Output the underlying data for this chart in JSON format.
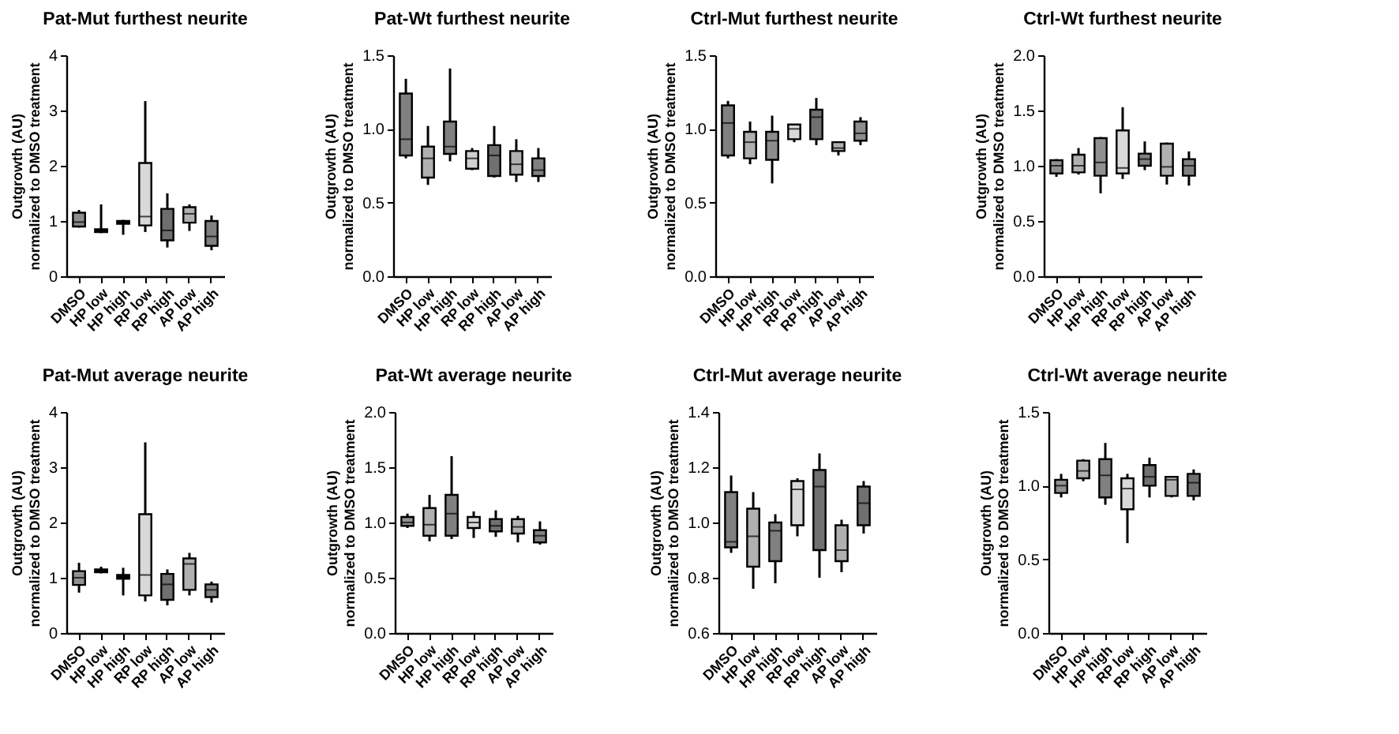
{
  "chart_data": [
    {
      "type": "box",
      "title": "Pat-Mut furthest neurite",
      "ylabel": "Outgrowth (AU)\nnormalized to DMSO treatment",
      "categories": [
        "DMSO",
        "HP low",
        "HP high",
        "RP low",
        "RP high",
        "AP low",
        "AP high"
      ],
      "colors": [
        "#8c8c8c",
        "#000000",
        "#000000",
        "#d9d9d9",
        "#6e6e6e",
        "#b0b0b0",
        "#808080"
      ],
      "ylim": [
        0,
        4
      ],
      "yticks": [
        0,
        1,
        2,
        3,
        4
      ],
      "grid": false,
      "boxes": [
        {
          "low": 0.88,
          "q1": 0.9,
          "median": 0.98,
          "q3": 1.15,
          "high": 1.2
        },
        {
          "low": 0.78,
          "q1": 0.8,
          "median": 0.82,
          "q3": 0.85,
          "high": 1.3
        },
        {
          "low": 0.75,
          "q1": 0.95,
          "median": 0.97,
          "q3": 1.0,
          "high": 1.02
        },
        {
          "low": 0.8,
          "q1": 0.92,
          "median": 1.08,
          "q3": 2.05,
          "high": 3.17
        },
        {
          "low": 0.52,
          "q1": 0.65,
          "median": 0.83,
          "q3": 1.22,
          "high": 1.5
        },
        {
          "low": 0.82,
          "q1": 0.97,
          "median": 1.13,
          "q3": 1.25,
          "high": 1.3
        },
        {
          "low": 0.47,
          "q1": 0.55,
          "median": 0.72,
          "q3": 1.0,
          "high": 1.1
        }
      ]
    },
    {
      "type": "box",
      "title": "Pat-Wt furthest neurite",
      "ylabel": "Outgrowth (AU)\nnormalized to DMSO treatment",
      "categories": [
        "DMSO",
        "HP low",
        "HP high",
        "RP low",
        "RP high",
        "AP low",
        "AP high"
      ],
      "colors": [
        "#808080",
        "#b0b0b0",
        "#808080",
        "#d0d0d0",
        "#707070",
        "#b0b0b0",
        "#808080"
      ],
      "ylim": [
        0,
        1.5
      ],
      "yticks": [
        {
          "value": 0,
          "label": "0.0"
        },
        0.5,
        {
          "value": 1,
          "label": "1.0"
        },
        1.5
      ],
      "grid": false,
      "boxes": [
        {
          "low": 0.8,
          "q1": 0.82,
          "median": 0.93,
          "q3": 1.24,
          "high": 1.34
        },
        {
          "low": 0.62,
          "q1": 0.67,
          "median": 0.8,
          "q3": 0.88,
          "high": 1.02
        },
        {
          "low": 0.78,
          "q1": 0.83,
          "median": 0.88,
          "q3": 1.05,
          "high": 1.41
        },
        {
          "low": 0.72,
          "q1": 0.73,
          "median": 0.8,
          "q3": 0.85,
          "high": 0.87
        },
        {
          "low": 0.67,
          "q1": 0.68,
          "median": 0.82,
          "q3": 0.89,
          "high": 1.02
        },
        {
          "low": 0.64,
          "q1": 0.69,
          "median": 0.76,
          "q3": 0.85,
          "high": 0.93
        },
        {
          "low": 0.64,
          "q1": 0.68,
          "median": 0.72,
          "q3": 0.8,
          "high": 0.87
        }
      ]
    },
    {
      "type": "box",
      "title": "Ctrl-Mut furthest neurite",
      "ylabel": "Outgrowth (AU)\nnormalized to DMSO treatment",
      "categories": [
        "DMSO",
        "HP low",
        "HP high",
        "RP low",
        "RP high",
        "AP low",
        "AP high"
      ],
      "colors": [
        "#808080",
        "#b0b0b0",
        "#8c8c8c",
        "#d9d9d9",
        "#707070",
        "#b0b0b0",
        "#8c8c8c"
      ],
      "ylim": [
        0,
        1.5
      ],
      "yticks": [
        {
          "value": 0,
          "label": "0.0"
        },
        0.5,
        {
          "value": 1,
          "label": "1.0"
        },
        1.5
      ],
      "grid": false,
      "boxes": [
        {
          "low": 0.8,
          "q1": 0.82,
          "median": 1.04,
          "q3": 1.16,
          "high": 1.19
        },
        {
          "low": 0.76,
          "q1": 0.8,
          "median": 0.91,
          "q3": 0.98,
          "high": 1.05
        },
        {
          "low": 0.63,
          "q1": 0.79,
          "median": 0.92,
          "q3": 0.98,
          "high": 1.09
        },
        {
          "low": 0.91,
          "q1": 0.93,
          "median": 1.0,
          "q3": 1.03,
          "high": 1.03
        },
        {
          "low": 0.89,
          "q1": 0.93,
          "median": 1.08,
          "q3": 1.13,
          "high": 1.21
        },
        {
          "low": 0.82,
          "q1": 0.85,
          "median": 0.87,
          "q3": 0.91,
          "high": 0.91
        },
        {
          "low": 0.89,
          "q1": 0.92,
          "median": 0.97,
          "q3": 1.05,
          "high": 1.08
        }
      ]
    },
    {
      "type": "box",
      "title": "Ctrl-Wt furthest neurite",
      "ylabel": "Outgrowth (AU)\nnormalized to DMSO treatment",
      "categories": [
        "DMSO",
        "HP low",
        "HP high",
        "RP low",
        "RP high",
        "AP low",
        "AP high"
      ],
      "colors": [
        "#909090",
        "#b0b0b0",
        "#909090",
        "#d9d9d9",
        "#808080",
        "#b0b0b0",
        "#808080"
      ],
      "ylim": [
        0,
        2
      ],
      "yticks": [
        {
          "value": 0,
          "label": "0.0"
        },
        0.5,
        {
          "value": 1,
          "label": "1.0"
        },
        1.5,
        {
          "value": 2,
          "label": "2.0"
        }
      ],
      "grid": false,
      "boxes": [
        {
          "low": 0.9,
          "q1": 0.93,
          "median": 1.0,
          "q3": 1.05,
          "high": 1.06
        },
        {
          "low": 0.92,
          "q1": 0.94,
          "median": 1.0,
          "q3": 1.1,
          "high": 1.16
        },
        {
          "low": 0.75,
          "q1": 0.91,
          "median": 1.03,
          "q3": 1.25,
          "high": 1.26
        },
        {
          "low": 0.88,
          "q1": 0.93,
          "median": 0.98,
          "q3": 1.32,
          "high": 1.53
        },
        {
          "low": 0.96,
          "q1": 1.0,
          "median": 1.06,
          "q3": 1.11,
          "high": 1.22
        },
        {
          "low": 0.83,
          "q1": 0.91,
          "median": 0.99,
          "q3": 1.2,
          "high": 1.21
        },
        {
          "low": 0.82,
          "q1": 0.91,
          "median": 1.0,
          "q3": 1.06,
          "high": 1.13
        }
      ]
    },
    {
      "type": "box",
      "title": "Pat-Mut average neurite",
      "ylabel": "Outgrowth (AU)\nnormalized to DMSO treatment",
      "categories": [
        "DMSO",
        "HP low",
        "HP high",
        "RP low",
        "RP high",
        "AP low",
        "AP high"
      ],
      "colors": [
        "#909090",
        "#000000",
        "#000000",
        "#d9d9d9",
        "#707070",
        "#b0b0b0",
        "#808080"
      ],
      "ylim": [
        0,
        4
      ],
      "yticks": [
        0,
        1,
        2,
        3,
        4
      ],
      "grid": false,
      "boxes": [
        {
          "low": 0.73,
          "q1": 0.87,
          "median": 1.0,
          "q3": 1.12,
          "high": 1.27
        },
        {
          "low": 1.08,
          "q1": 1.1,
          "median": 1.12,
          "q3": 1.15,
          "high": 1.2
        },
        {
          "low": 0.68,
          "q1": 0.98,
          "median": 1.0,
          "q3": 1.05,
          "high": 1.18
        },
        {
          "low": 0.57,
          "q1": 0.68,
          "median": 1.05,
          "q3": 2.15,
          "high": 3.45
        },
        {
          "low": 0.5,
          "q1": 0.6,
          "median": 0.88,
          "q3": 1.07,
          "high": 1.15
        },
        {
          "low": 0.68,
          "q1": 0.78,
          "median": 1.25,
          "q3": 1.35,
          "high": 1.45
        },
        {
          "low": 0.55,
          "q1": 0.65,
          "median": 0.78,
          "q3": 0.88,
          "high": 0.93
        }
      ]
    },
    {
      "type": "box",
      "title": "Pat-Wt average neurite",
      "ylabel": "Outgrowth (AU)\nnormalized to DMSO treatment",
      "categories": [
        "DMSO",
        "HP low",
        "HP high",
        "RP low",
        "RP high",
        "AP low",
        "AP high"
      ],
      "colors": [
        "#909090",
        "#b0b0b0",
        "#808080",
        "#d9d9d9",
        "#707070",
        "#b0b0b0",
        "#808080"
      ],
      "ylim": [
        0,
        2
      ],
      "yticks": [
        {
          "value": 0,
          "label": "0.0"
        },
        0.5,
        {
          "value": 1,
          "label": "1.0"
        },
        1.5,
        {
          "value": 2,
          "label": "2.0"
        }
      ],
      "grid": false,
      "boxes": [
        {
          "low": 0.95,
          "q1": 0.97,
          "median": 1.0,
          "q3": 1.05,
          "high": 1.08
        },
        {
          "low": 0.83,
          "q1": 0.88,
          "median": 0.98,
          "q3": 1.13,
          "high": 1.25
        },
        {
          "low": 0.85,
          "q1": 0.88,
          "median": 1.08,
          "q3": 1.25,
          "high": 1.6
        },
        {
          "low": 0.86,
          "q1": 0.95,
          "median": 1.0,
          "q3": 1.05,
          "high": 1.1
        },
        {
          "low": 0.87,
          "q1": 0.92,
          "median": 0.97,
          "q3": 1.03,
          "high": 1.11
        },
        {
          "low": 0.82,
          "q1": 0.9,
          "median": 0.96,
          "q3": 1.03,
          "high": 1.06
        },
        {
          "low": 0.8,
          "q1": 0.82,
          "median": 0.88,
          "q3": 0.93,
          "high": 1.01
        }
      ]
    },
    {
      "type": "box",
      "title": "Ctrl-Mut average neurite",
      "ylabel": "Outgrowth (AU)\nnormalized to DMSO treatment",
      "categories": [
        "DMSO",
        "HP low",
        "HP high",
        "RP low",
        "RP high",
        "AP low",
        "AP high"
      ],
      "colors": [
        "#808080",
        "#b0b0b0",
        "#808080",
        "#d9d9d9",
        "#707070",
        "#b0b0b0",
        "#707070"
      ],
      "ylim": [
        0.6,
        1.4
      ],
      "yticks": [
        0.6,
        0.8,
        {
          "value": 1,
          "label": "1.0"
        },
        1.2,
        1.4
      ],
      "grid": false,
      "boxes": [
        {
          "low": 0.89,
          "q1": 0.91,
          "median": 0.93,
          "q3": 1.11,
          "high": 1.17
        },
        {
          "low": 0.76,
          "q1": 0.84,
          "median": 0.95,
          "q3": 1.05,
          "high": 1.11
        },
        {
          "low": 0.78,
          "q1": 0.86,
          "median": 0.97,
          "q3": 1.0,
          "high": 1.03
        },
        {
          "low": 0.95,
          "q1": 0.99,
          "median": 1.12,
          "q3": 1.15,
          "high": 1.16
        },
        {
          "low": 0.8,
          "q1": 0.9,
          "median": 1.13,
          "q3": 1.19,
          "high": 1.25
        },
        {
          "low": 0.82,
          "q1": 0.86,
          "median": 0.9,
          "q3": 0.99,
          "high": 1.01
        },
        {
          "low": 0.96,
          "q1": 0.99,
          "median": 1.07,
          "q3": 1.13,
          "high": 1.15
        }
      ]
    },
    {
      "type": "box",
      "title": "Ctrl-Wt average neurite",
      "ylabel": "Outgrowth (AU)\nnormalized to DMSO treatment",
      "categories": [
        "DMSO",
        "HP low",
        "HP high",
        "RP low",
        "RP high",
        "AP low",
        "AP high"
      ],
      "colors": [
        "#909090",
        "#b0b0b0",
        "#808080",
        "#d9d9d9",
        "#707070",
        "#b0b0b0",
        "#707070"
      ],
      "ylim": [
        0,
        1.5
      ],
      "yticks": [
        {
          "value": 0,
          "label": "0.0"
        },
        0.5,
        {
          "value": 1,
          "label": "1.0"
        },
        1.5
      ],
      "grid": false,
      "boxes": [
        {
          "low": 0.92,
          "q1": 0.95,
          "median": 1.0,
          "q3": 1.04,
          "high": 1.08
        },
        {
          "low": 1.03,
          "q1": 1.05,
          "median": 1.1,
          "q3": 1.17,
          "high": 1.18
        },
        {
          "low": 0.87,
          "q1": 0.92,
          "median": 1.07,
          "q3": 1.18,
          "high": 1.29
        },
        {
          "low": 0.61,
          "q1": 0.84,
          "median": 0.98,
          "q3": 1.05,
          "high": 1.08
        },
        {
          "low": 0.92,
          "q1": 1.0,
          "median": 1.06,
          "q3": 1.14,
          "high": 1.19
        },
        {
          "low": 0.92,
          "q1": 0.93,
          "median": 1.04,
          "q3": 1.06,
          "high": 1.06
        },
        {
          "low": 0.9,
          "q1": 0.93,
          "median": 1.02,
          "q3": 1.08,
          "high": 1.11
        }
      ]
    }
  ]
}
